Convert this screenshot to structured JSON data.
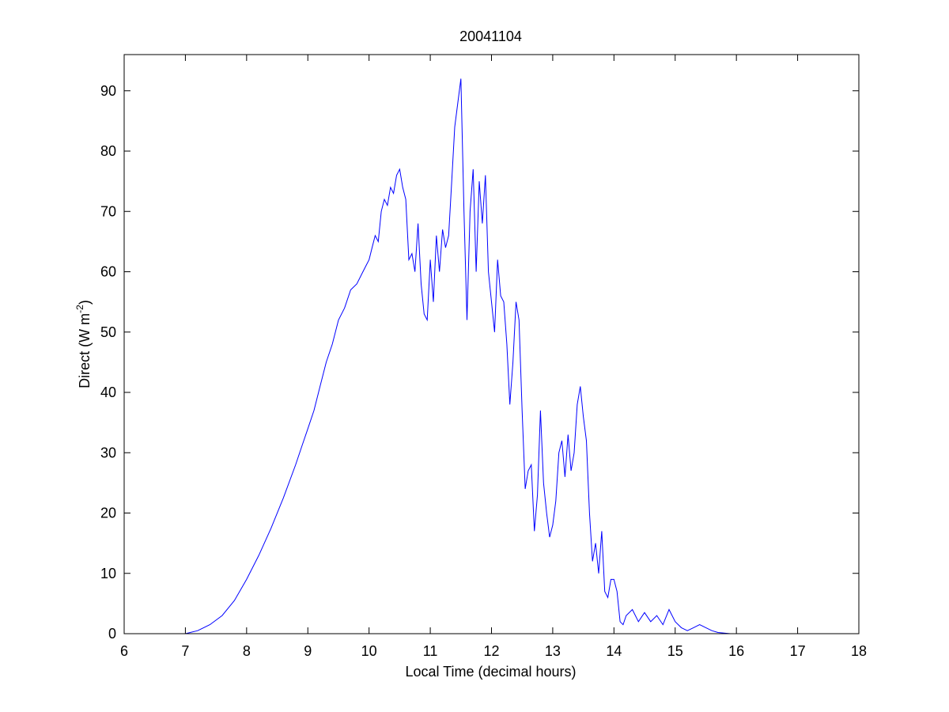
{
  "chart_data": {
    "type": "line",
    "title": "20041104",
    "xlabel": "Local Time (decimal hours)",
    "ylabel": {
      "text": "Direct (W m",
      "superscript": "-2",
      "suffix": ")"
    },
    "xlim": [
      6,
      18
    ],
    "ylim": [
      0,
      96
    ],
    "xticks": [
      6,
      7,
      8,
      9,
      10,
      11,
      12,
      13,
      14,
      15,
      16,
      17,
      18
    ],
    "yticks": [
      0,
      10,
      20,
      30,
      40,
      50,
      60,
      70,
      80,
      90
    ],
    "grid": false,
    "line_color": "#0000ff",
    "series": [
      {
        "x": [
          7.0,
          7.2,
          7.4,
          7.6,
          7.8,
          8.0,
          8.2,
          8.4,
          8.6,
          8.8,
          8.9,
          9.0,
          9.1,
          9.2,
          9.3,
          9.4,
          9.5,
          9.6,
          9.7,
          9.8,
          9.9,
          9.95,
          10.0,
          10.05,
          10.1,
          10.15,
          10.2,
          10.25,
          10.3,
          10.35,
          10.4,
          10.45,
          10.5,
          10.55,
          10.6,
          10.65,
          10.7,
          10.75,
          10.8,
          10.85,
          10.9,
          10.95,
          11.0,
          11.05,
          11.1,
          11.15,
          11.2,
          11.25,
          11.3,
          11.35,
          11.4,
          11.45,
          11.5,
          11.55,
          11.6,
          11.65,
          11.7,
          11.75,
          11.8,
          11.85,
          11.9,
          11.95,
          12.0,
          12.05,
          12.1,
          12.15,
          12.2,
          12.25,
          12.3,
          12.35,
          12.4,
          12.45,
          12.5,
          12.55,
          12.6,
          12.65,
          12.7,
          12.75,
          12.8,
          12.85,
          12.9,
          12.95,
          13.0,
          13.05,
          13.1,
          13.15,
          13.2,
          13.25,
          13.3,
          13.35,
          13.4,
          13.45,
          13.5,
          13.55,
          13.6,
          13.65,
          13.7,
          13.75,
          13.8,
          13.85,
          13.9,
          13.95,
          14.0,
          14.05,
          14.1,
          14.15,
          14.2,
          14.3,
          14.4,
          14.5,
          14.6,
          14.7,
          14.8,
          14.9,
          15.0,
          15.1,
          15.2,
          15.3,
          15.4,
          15.5,
          15.6,
          15.7,
          15.8,
          15.9
        ],
        "y": [
          0,
          0.5,
          1.5,
          3,
          5.5,
          9,
          13,
          17.5,
          22.5,
          28,
          31,
          34,
          37,
          41,
          45,
          48,
          52,
          54,
          57,
          58,
          60,
          61,
          62,
          64,
          66,
          65,
          70,
          72,
          71,
          74,
          73,
          76,
          77,
          74,
          72,
          62,
          63,
          60,
          68,
          58,
          53,
          52,
          62,
          55,
          66,
          60,
          67,
          64,
          66,
          75,
          84,
          88,
          92,
          70,
          52,
          70,
          77,
          60,
          75,
          68,
          76,
          60,
          55,
          50,
          62,
          56,
          55,
          48,
          38,
          45,
          55,
          52,
          37,
          24,
          27,
          28,
          17,
          23,
          37,
          25,
          20,
          16,
          18,
          22,
          30,
          32,
          26,
          33,
          27,
          30,
          38,
          41,
          36,
          32,
          20,
          12,
          15,
          10,
          17,
          7,
          6,
          9,
          9,
          7,
          2,
          1.5,
          3,
          4,
          2,
          3.5,
          2,
          3,
          1.5,
          4,
          2,
          1,
          0.5,
          1,
          1.5,
          1,
          0.5,
          0.2,
          0.1,
          0
        ]
      }
    ]
  }
}
